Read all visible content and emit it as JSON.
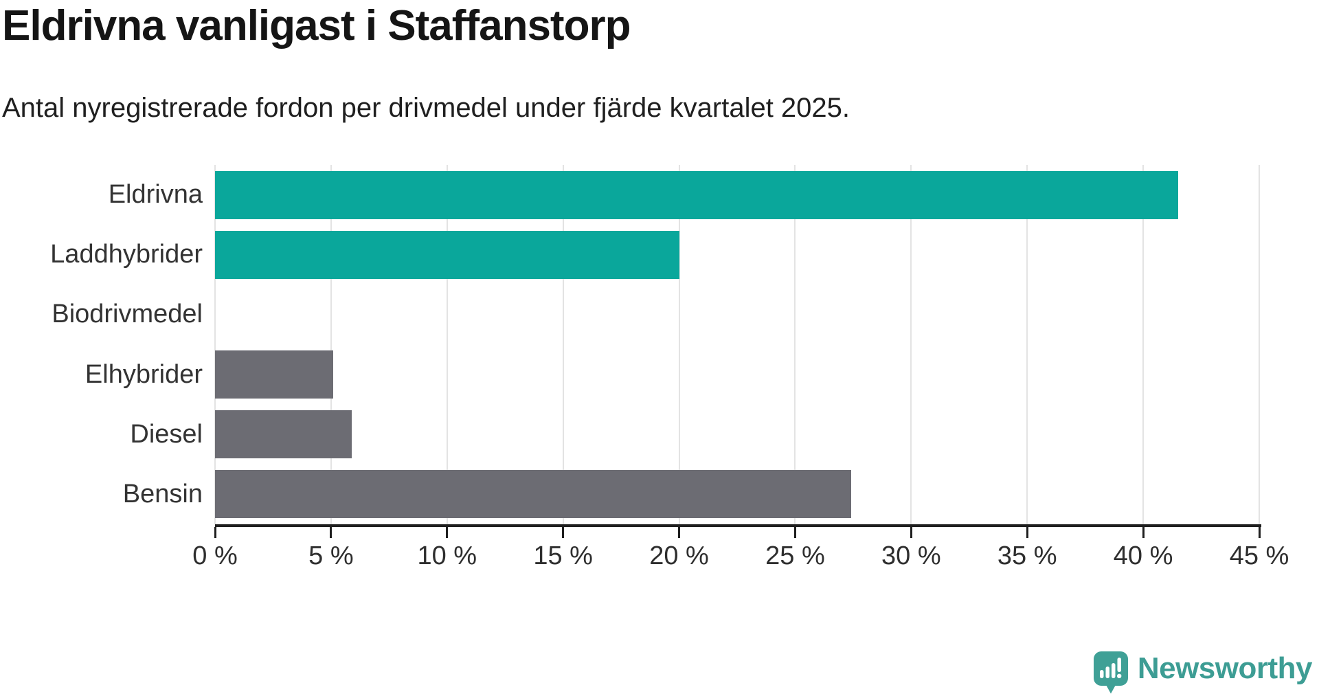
{
  "header": {
    "title": "Eldrivna vanligast i Staffanstorp",
    "subtitle": "Antal nyregistrerade fordon per drivmedel under fjärde kvartalet 2025."
  },
  "chart_data": {
    "type": "bar",
    "orientation": "horizontal",
    "title": "Eldrivna vanligast i Staffanstorp",
    "subtitle": "Antal nyregistrerade fordon per drivmedel under fjärde kvartalet 2025.",
    "categories": [
      "Eldrivna",
      "Laddhybrider",
      "Biodrivmedel",
      "Elhybrider",
      "Diesel",
      "Bensin"
    ],
    "values": [
      41.5,
      20.0,
      0,
      5.1,
      5.9,
      27.4
    ],
    "unit": "%",
    "xlim": [
      0,
      45
    ],
    "x_ticks": [
      0,
      5,
      10,
      15,
      20,
      25,
      30,
      35,
      40,
      45
    ],
    "tick_label_suffix": " %",
    "bar_colors": [
      "#0aa79b",
      "#0aa79b",
      "#6c6c73",
      "#6c6c73",
      "#6c6c73",
      "#6c6c73"
    ],
    "grid": true,
    "legend": "none"
  },
  "colors": {
    "highlight_teal": "#0aa79b",
    "neutral_gray": "#6c6c73",
    "gridline": "#e3e3e3",
    "axis": "#1f1f1f",
    "brand_teal": "#3d9d94"
  },
  "footer": {
    "brand": "Newsworthy"
  }
}
